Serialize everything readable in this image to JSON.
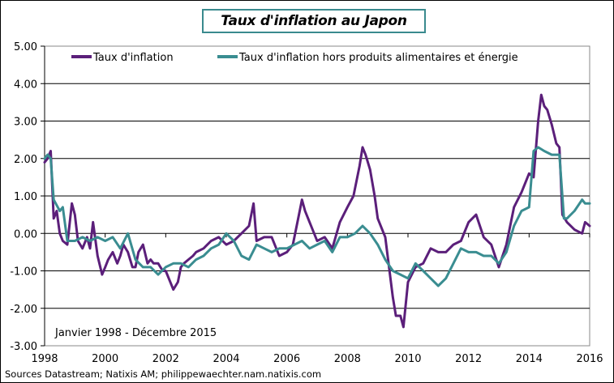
{
  "chart_data": {
    "type": "line",
    "title": "Taux d'inflation au Japon",
    "xlabel": "",
    "ylabel": "",
    "ylim": [
      -3.0,
      5.0
    ],
    "xlim": [
      1998,
      2016
    ],
    "yticks": [
      "5.00",
      "4.00",
      "3.00",
      "2.00",
      "1.00",
      "0.00",
      "-1.00",
      "-2.00",
      "-3.00"
    ],
    "xticks": [
      "1998",
      "2000",
      "2002",
      "2004",
      "2006",
      "2008",
      "2010",
      "2012",
      "2014",
      "2016"
    ],
    "grid": "horizontal",
    "legend_position": "top-inside",
    "annotation": "Janvier 1998 - Décembre 2015",
    "source": "Sources  Datastream; Natixis AM; philippewaechter.nam.natixis.com",
    "series": [
      {
        "name": "Taux d'inflation",
        "color": "#5b1f7a",
        "x": [
          1998.0,
          1998.1,
          1998.2,
          1998.3,
          1998.4,
          1998.5,
          1998.6,
          1998.75,
          1998.9,
          1999.0,
          1999.1,
          1999.25,
          1999.4,
          1999.5,
          1999.6,
          1999.75,
          1999.9,
          2000.0,
          2000.1,
          2000.25,
          2000.4,
          2000.5,
          2000.6,
          2000.75,
          2000.9,
          2001.0,
          2001.1,
          2001.25,
          2001.4,
          2001.5,
          2001.6,
          2001.75,
          2001.9,
          2002.0,
          2002.1,
          2002.25,
          2002.4,
          2002.5,
          2002.6,
          2002.75,
          2002.9,
          2003.0,
          2003.25,
          2003.5,
          2003.75,
          2004.0,
          2004.25,
          2004.5,
          2004.75,
          2004.9,
          2005.0,
          2005.25,
          2005.5,
          2005.75,
          2006.0,
          2006.2,
          2006.4,
          2006.5,
          2006.6,
          2006.75,
          2007.0,
          2007.25,
          2007.5,
          2007.75,
          2008.0,
          2008.2,
          2008.4,
          2008.5,
          2008.6,
          2008.75,
          2008.9,
          2009.0,
          2009.25,
          2009.5,
          2009.6,
          2009.75,
          2009.85,
          2010.0,
          2010.25,
          2010.5,
          2010.75,
          2011.0,
          2011.25,
          2011.5,
          2011.75,
          2012.0,
          2012.25,
          2012.5,
          2012.75,
          2013.0,
          2013.25,
          2013.5,
          2013.75,
          2014.0,
          2014.15,
          2014.3,
          2014.4,
          2014.5,
          2014.6,
          2014.75,
          2014.9,
          2015.0,
          2015.1,
          2015.25,
          2015.5,
          2015.75,
          2015.85,
          2016.0
        ],
        "values": [
          1.9,
          2.0,
          2.2,
          0.4,
          0.6,
          0.0,
          -0.2,
          -0.3,
          0.8,
          0.5,
          -0.2,
          -0.4,
          -0.1,
          -0.4,
          0.3,
          -0.6,
          -1.1,
          -0.9,
          -0.7,
          -0.5,
          -0.8,
          -0.6,
          -0.3,
          -0.5,
          -0.9,
          -0.9,
          -0.5,
          -0.3,
          -0.8,
          -0.7,
          -0.8,
          -0.8,
          -1.0,
          -1.0,
          -1.2,
          -1.5,
          -1.3,
          -0.9,
          -0.8,
          -0.7,
          -0.6,
          -0.5,
          -0.4,
          -0.2,
          -0.1,
          -0.3,
          -0.2,
          0.0,
          0.2,
          0.8,
          -0.2,
          -0.1,
          -0.1,
          -0.6,
          -0.5,
          -0.3,
          0.5,
          0.9,
          0.6,
          0.3,
          -0.2,
          -0.1,
          -0.4,
          0.3,
          0.7,
          1.0,
          1.8,
          2.3,
          2.1,
          1.7,
          1.0,
          0.4,
          -0.1,
          -1.7,
          -2.2,
          -2.2,
          -2.5,
          -1.3,
          -0.9,
          -0.8,
          -0.4,
          -0.5,
          -0.5,
          -0.3,
          -0.2,
          0.3,
          0.5,
          -0.1,
          -0.3,
          -0.9,
          -0.3,
          0.7,
          1.1,
          1.6,
          1.5,
          3.0,
          3.7,
          3.4,
          3.3,
          2.9,
          2.4,
          2.3,
          0.5,
          0.3,
          0.1,
          0.0,
          0.3,
          0.2
        ]
      },
      {
        "name": "Taux d'inflation hors produits alimentaires et énergie",
        "color": "#3a8d91",
        "x": [
          1998.0,
          1998.1,
          1998.2,
          1998.3,
          1998.5,
          1998.6,
          1998.75,
          1999.0,
          1999.25,
          1999.5,
          1999.75,
          2000.0,
          2000.25,
          2000.5,
          2000.75,
          2001.0,
          2001.25,
          2001.5,
          2001.75,
          2002.0,
          2002.25,
          2002.5,
          2002.75,
          2003.0,
          2003.25,
          2003.5,
          2003.75,
          2004.0,
          2004.25,
          2004.5,
          2004.75,
          2005.0,
          2005.25,
          2005.5,
          2005.75,
          2006.0,
          2006.25,
          2006.5,
          2006.75,
          2007.0,
          2007.25,
          2007.5,
          2007.75,
          2008.0,
          2008.25,
          2008.5,
          2008.75,
          2009.0,
          2009.25,
          2009.5,
          2009.75,
          2010.0,
          2010.25,
          2010.5,
          2010.75,
          2011.0,
          2011.25,
          2011.5,
          2011.75,
          2012.0,
          2012.25,
          2012.5,
          2012.75,
          2013.0,
          2013.25,
          2013.5,
          2013.75,
          2014.0,
          2014.15,
          2014.3,
          2014.5,
          2014.75,
          2015.0,
          2015.15,
          2015.25,
          2015.5,
          2015.75,
          2015.85,
          2016.0
        ],
        "values": [
          2.0,
          2.1,
          2.0,
          0.9,
          0.6,
          0.7,
          -0.2,
          -0.2,
          -0.1,
          -0.2,
          -0.1,
          -0.2,
          -0.1,
          -0.4,
          0.0,
          -0.7,
          -0.9,
          -0.9,
          -1.1,
          -0.9,
          -0.8,
          -0.8,
          -0.9,
          -0.7,
          -0.6,
          -0.4,
          -0.3,
          0.0,
          -0.2,
          -0.6,
          -0.7,
          -0.3,
          -0.4,
          -0.5,
          -0.4,
          -0.4,
          -0.3,
          -0.2,
          -0.4,
          -0.3,
          -0.2,
          -0.5,
          -0.1,
          -0.1,
          0.0,
          0.2,
          0.0,
          -0.3,
          -0.7,
          -1.0,
          -1.1,
          -1.2,
          -0.8,
          -1.0,
          -1.2,
          -1.4,
          -1.2,
          -0.8,
          -0.4,
          -0.5,
          -0.5,
          -0.6,
          -0.6,
          -0.8,
          -0.5,
          0.2,
          0.6,
          0.7,
          2.2,
          2.3,
          2.2,
          2.1,
          2.1,
          0.4,
          0.4,
          0.6,
          0.9,
          0.8,
          0.8
        ]
      }
    ]
  },
  "title": "Taux d'inflation au Japon",
  "legend": {
    "items": [
      {
        "label": "Taux d'inflation",
        "color": "#5b1f7a"
      },
      {
        "label": "Taux d'inflation hors produits alimentaires et énergie",
        "color": "#3a8d91"
      }
    ]
  },
  "axes": {
    "y": [
      "5.00",
      "4.00",
      "3.00",
      "2.00",
      "1.00",
      "0.00",
      "-1.00",
      "-2.00",
      "-3.00"
    ],
    "x": [
      "1998",
      "2000",
      "2002",
      "2004",
      "2006",
      "2008",
      "2010",
      "2012",
      "2014",
      "2016"
    ]
  },
  "annotation": "Janvier 1998 - Décembre 2015",
  "source": "Sources  Datastream; Natixis AM; philippewaechter.nam.natixis.com"
}
